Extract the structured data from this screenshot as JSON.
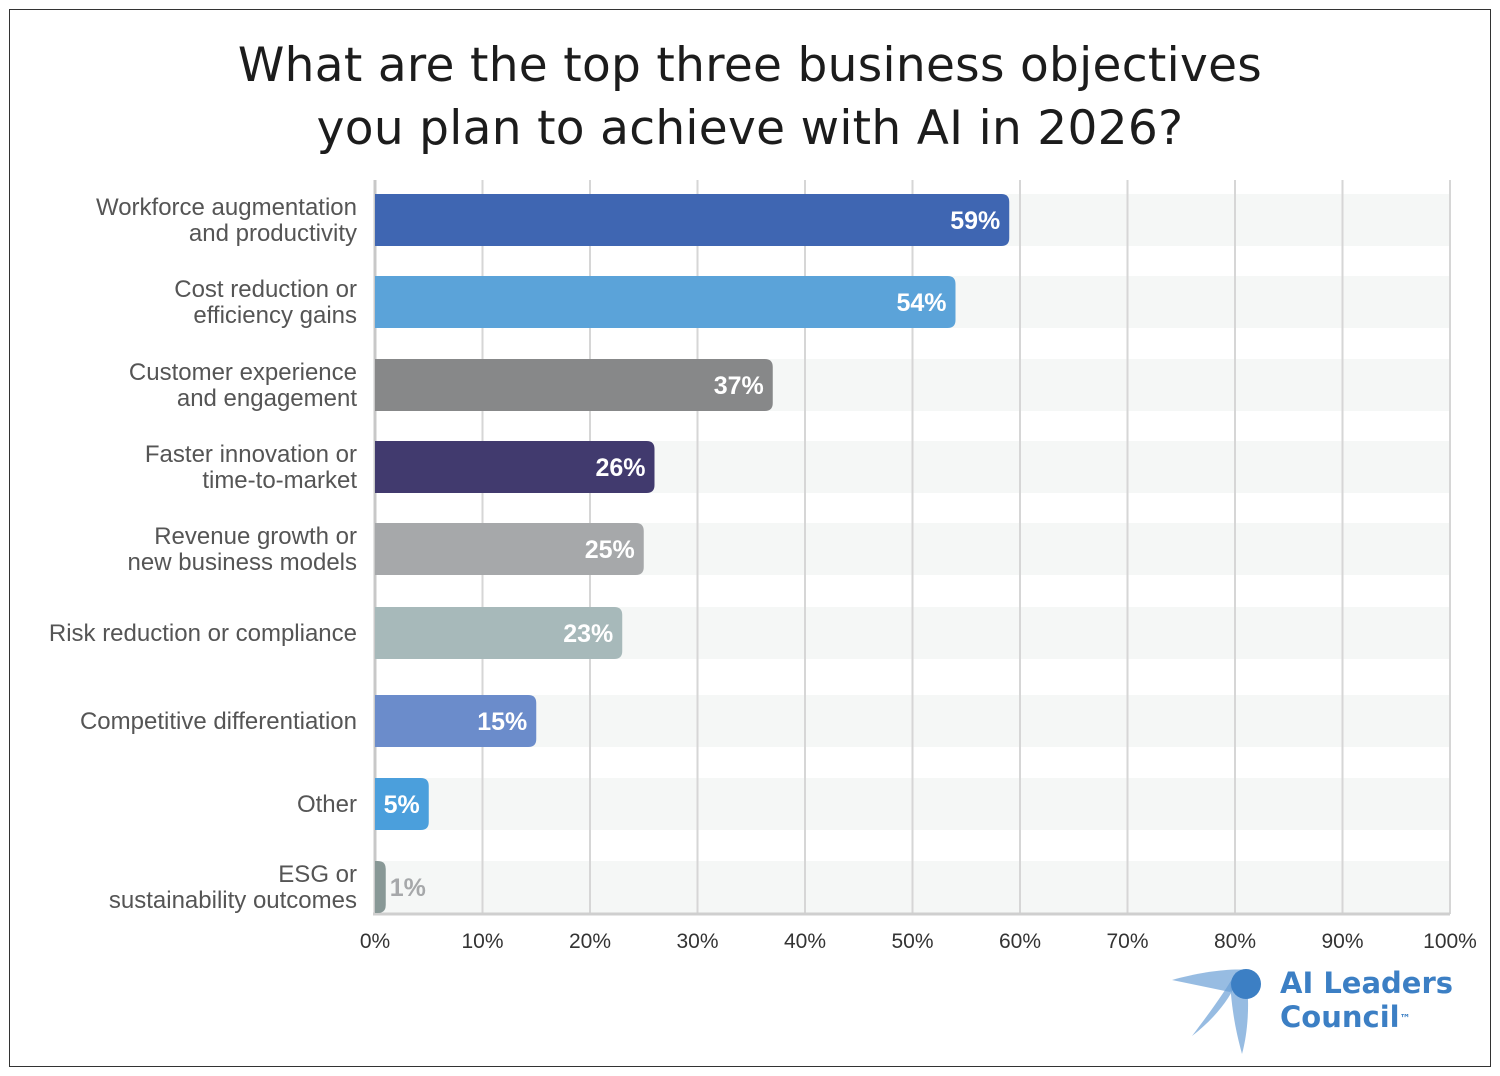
{
  "chart_data": {
    "type": "bar",
    "orientation": "horizontal",
    "title": "What are the top three business objectives you plan to achieve with AI in 2026?",
    "title_lines": [
      "What are the top three business objectives",
      "you plan to achieve with AI in 2026?"
    ],
    "categories": [
      [
        "Workforce augmentation",
        "and productivity"
      ],
      [
        "Cost reduction or",
        "efficiency gains"
      ],
      [
        "Customer experience",
        "and engagement"
      ],
      [
        "Faster innovation or",
        "time-to-market"
      ],
      [
        "Revenue growth or",
        "new business models"
      ],
      [
        "Risk reduction or compliance"
      ],
      [
        "Competitive differentiation"
      ],
      [
        "Other"
      ],
      [
        "ESG or",
        "sustainability outcomes"
      ]
    ],
    "values": [
      59,
      54,
      37,
      26,
      25,
      23,
      15,
      5,
      1
    ],
    "data_labels": [
      "59%",
      "54%",
      "37%",
      "26%",
      "25%",
      "23%",
      "15%",
      "5%",
      "1%"
    ],
    "colors": [
      "#3f66b2",
      "#5ba3d9",
      "#878889",
      "#413a6e",
      "#a6a8aa",
      "#a7b9ba",
      "#6b8ccb",
      "#4b9fdc",
      "#889896"
    ],
    "xlim": [
      0,
      100
    ],
    "x_ticks": [
      "0%",
      "10%",
      "20%",
      "30%",
      "40%",
      "50%",
      "60%",
      "70%",
      "80%",
      "90%",
      "100%"
    ],
    "xlabel": "",
    "ylabel": "",
    "grid": true
  },
  "logo": {
    "line1": "AI Leaders",
    "line2": "Council",
    "mark": "™",
    "color": "#3c7fc4"
  }
}
